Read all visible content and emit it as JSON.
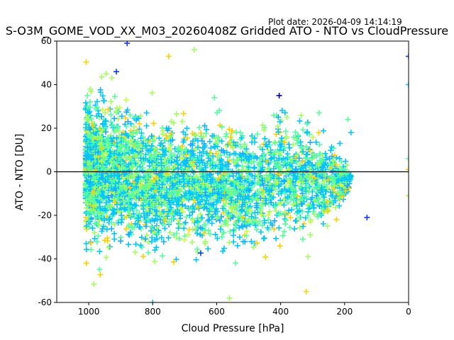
{
  "plot_date": "Plot date: 2026-04-09 14:14:19",
  "chart_data": {
    "type": "scatter",
    "title": "S-O3M_GOME_VOD_XX_M03_20260408Z Gridded ATO - NTO vs CloudPressure",
    "xlabel": "Cloud Pressure [hPa]",
    "ylabel": "ATO - NTO [DU]",
    "xlim": [
      1100,
      0
    ],
    "ylim": [
      -60,
      60
    ],
    "xticks": [
      1000,
      800,
      600,
      400,
      200,
      0
    ],
    "yticks": [
      -60,
      -40,
      -20,
      0,
      20,
      40,
      60
    ],
    "reference_line_y": 0,
    "marker": "+",
    "colors": [
      "#00c8ff",
      "#55ff9e",
      "#a0ff5a",
      "#ffd000",
      "#0a3cff",
      "#0000a8",
      "#17a8ff",
      "#c8ff3a"
    ],
    "spread_envelope": [
      {
        "pressure": 1010,
        "ymin": -50,
        "ymax": 57
      },
      {
        "pressure": 950,
        "ymin": -53,
        "ymax": 58
      },
      {
        "pressure": 900,
        "ymin": -50,
        "ymax": 53
      },
      {
        "pressure": 850,
        "ymin": -47,
        "ymax": 47
      },
      {
        "pressure": 800,
        "ymin": -57,
        "ymax": 45
      },
      {
        "pressure": 700,
        "ymin": -50,
        "ymax": 45
      },
      {
        "pressure": 600,
        "ymin": -50,
        "ymax": 43
      },
      {
        "pressure": 500,
        "ymin": -52,
        "ymax": 40
      },
      {
        "pressure": 400,
        "ymin": -43,
        "ymax": 43
      },
      {
        "pressure": 320,
        "ymin": -47,
        "ymax": 40
      },
      {
        "pressure": 250,
        "ymin": -35,
        "ymax": 30
      },
      {
        "pressure": 200,
        "ymin": -20,
        "ymax": 15
      },
      {
        "pressure": 180,
        "ymin": -5,
        "ymax": 3
      }
    ],
    "outliers": [
      {
        "pressure": 0,
        "value": 53
      },
      {
        "pressure": 0,
        "value": 40
      },
      {
        "pressure": 0,
        "value": 6
      },
      {
        "pressure": 0,
        "value": 1
      },
      {
        "pressure": 0,
        "value": -11
      },
      {
        "pressure": 130,
        "value": -21
      },
      {
        "pressure": 180,
        "value": 18
      },
      {
        "pressure": 190,
        "value": 24
      },
      {
        "pressure": 750,
        "value": 53
      },
      {
        "pressure": 670,
        "value": 56
      },
      {
        "pressure": 880,
        "value": 59
      },
      {
        "pressure": 800,
        "value": -60
      },
      {
        "pressure": 280,
        "value": 27
      },
      {
        "pressure": 320,
        "value": -55
      },
      {
        "pressure": 560,
        "value": -58
      }
    ]
  }
}
